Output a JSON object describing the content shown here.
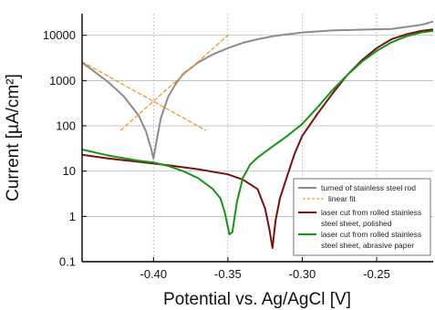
{
  "chart_data": {
    "type": "line",
    "xlabel": "Potential vs. Ag/AgCl [V]",
    "ylabel": "Current [µA/cm²]",
    "x_scale": "linear",
    "y_scale": "log",
    "xlim": [
      -0.448,
      -0.212
    ],
    "ylim": [
      0.1,
      30000
    ],
    "x_ticks": [
      -0.4,
      -0.35,
      -0.3,
      -0.25
    ],
    "x_tick_labels": [
      "-0.40",
      "-0.35",
      "-0.30",
      "-0.25"
    ],
    "y_ticks": [
      0.1,
      1,
      10,
      100,
      1000,
      10000
    ],
    "y_tick_labels": [
      "0.1",
      "1",
      "10",
      "100",
      "1000",
      "10000"
    ],
    "grid": true,
    "legend_position": "bottom-right",
    "series": [
      {
        "name": "turned of stainless steel rod",
        "color": "#8c8c8c",
        "style": "solid",
        "x": [
          -0.448,
          -0.44,
          -0.43,
          -0.42,
          -0.41,
          -0.405,
          -0.402,
          -0.4,
          -0.398,
          -0.395,
          -0.39,
          -0.385,
          -0.38,
          -0.37,
          -0.36,
          -0.35,
          -0.34,
          -0.33,
          -0.32,
          -0.31,
          -0.3,
          -0.28,
          -0.26,
          -0.24,
          -0.22,
          -0.212
        ],
        "y": [
          2500,
          1600,
          900,
          450,
          170,
          75,
          35,
          19,
          45,
          150,
          450,
          850,
          1400,
          2500,
          3800,
          5200,
          6800,
          8200,
          9500,
          10500,
          11500,
          12800,
          13300,
          13800,
          17000,
          20000
        ]
      },
      {
        "name": "linear fit",
        "color": "#f39a2e",
        "style": "dashed",
        "segments": [
          {
            "x": [
              -0.448,
              -0.365
            ],
            "y": [
              2600,
              80
            ]
          },
          {
            "x": [
              -0.422,
              -0.35
            ],
            "y": [
              80,
              10000
            ]
          }
        ]
      },
      {
        "name": "laser cut from rolled stainless steel sheet, polished",
        "color": "#7a1010",
        "style": "solid",
        "x": [
          -0.448,
          -0.43,
          -0.41,
          -0.39,
          -0.37,
          -0.35,
          -0.34,
          -0.33,
          -0.325,
          -0.322,
          -0.32,
          -0.318,
          -0.315,
          -0.31,
          -0.305,
          -0.3,
          -0.29,
          -0.28,
          -0.27,
          -0.26,
          -0.25,
          -0.24,
          -0.23,
          -0.22,
          -0.212
        ],
        "y": [
          23,
          19,
          16,
          13.5,
          11,
          8.5,
          6.5,
          4,
          1.5,
          0.5,
          0.2,
          0.8,
          2.5,
          8,
          25,
          60,
          180,
          500,
          1300,
          2800,
          5200,
          8200,
          10500,
          12500,
          13500
        ]
      },
      {
        "name": "laser cut from rolled stainless steel sheet, abrasive paper",
        "color": "#169416",
        "style": "solid",
        "x": [
          -0.448,
          -0.43,
          -0.41,
          -0.4,
          -0.39,
          -0.38,
          -0.37,
          -0.36,
          -0.355,
          -0.352,
          -0.349,
          -0.347,
          -0.344,
          -0.34,
          -0.335,
          -0.33,
          -0.32,
          -0.31,
          -0.3,
          -0.29,
          -0.28,
          -0.27,
          -0.26,
          -0.25,
          -0.24,
          -0.23,
          -0.22,
          -0.212
        ],
        "y": [
          30,
          22,
          17,
          15.5,
          13,
          10,
          7,
          4,
          2.5,
          1.2,
          0.4,
          0.45,
          2,
          7,
          14,
          20,
          35,
          60,
          110,
          250,
          600,
          1300,
          2600,
          4500,
          7000,
          9500,
          11500,
          12500
        ]
      }
    ]
  }
}
